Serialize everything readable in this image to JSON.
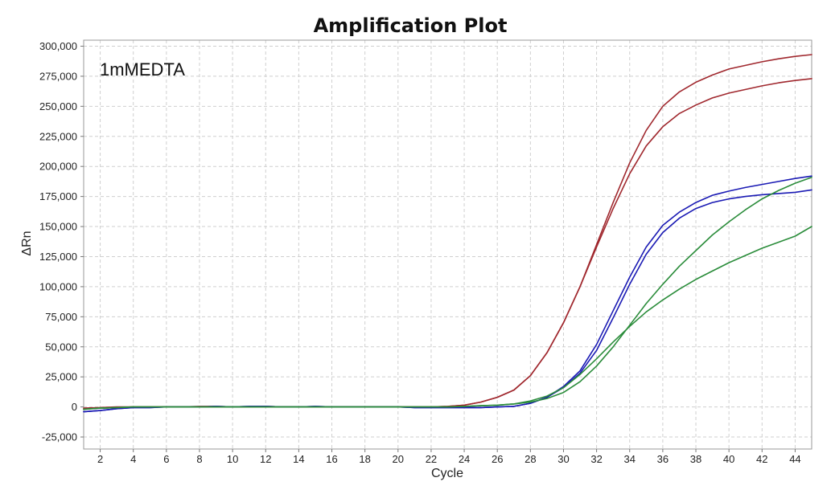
{
  "chart_data": {
    "type": "line",
    "title": "Amplification Plot",
    "xlabel": "Cycle",
    "ylabel": "ΔRn",
    "annotation": "1mMEDTA",
    "xlim": [
      1,
      45
    ],
    "ylim": [
      -35000,
      305000
    ],
    "x_ticks": [
      2,
      4,
      6,
      8,
      10,
      12,
      14,
      16,
      18,
      20,
      22,
      24,
      26,
      28,
      30,
      32,
      34,
      36,
      38,
      40,
      42,
      44
    ],
    "y_ticks": [
      -25000,
      0,
      25000,
      50000,
      75000,
      100000,
      125000,
      150000,
      175000,
      200000,
      225000,
      250000,
      275000,
      300000
    ],
    "y_tick_labels": [
      "-25,000",
      "0",
      "25,000",
      "50,000",
      "75,000",
      "100,000",
      "125,000",
      "150,000",
      "175,000",
      "200,000",
      "225,000",
      "250,000",
      "275,000",
      "300,000"
    ],
    "grid": true,
    "x": [
      1,
      2,
      3,
      4,
      5,
      6,
      7,
      8,
      9,
      10,
      11,
      12,
      13,
      14,
      15,
      16,
      17,
      18,
      19,
      20,
      21,
      22,
      23,
      24,
      25,
      26,
      27,
      28,
      29,
      30,
      31,
      32,
      33,
      34,
      35,
      36,
      37,
      38,
      39,
      40,
      41,
      42,
      43,
      44,
      45
    ],
    "series": [
      {
        "color": "#a0282e",
        "values": [
          -1000,
          -500,
          0,
          0,
          0,
          0,
          0,
          500,
          500,
          0,
          0,
          500,
          0,
          0,
          0,
          0,
          0,
          0,
          0,
          0,
          0,
          0,
          500,
          1500,
          4000,
          8000,
          14000,
          26000,
          45000,
          70000,
          100000,
          135000,
          170000,
          203000,
          230000,
          250000,
          262000,
          270000,
          276000,
          281000,
          284000,
          287000,
          289500,
          291500,
          293000
        ]
      },
      {
        "color": "#a0282e",
        "values": [
          -1500,
          -1000,
          -500,
          0,
          0,
          0,
          0,
          0,
          0,
          0,
          0,
          0,
          0,
          0,
          0,
          0,
          0,
          0,
          0,
          0,
          0,
          0,
          500,
          1500,
          4000,
          8000,
          14000,
          26000,
          45000,
          70000,
          100000,
          133000,
          165000,
          194000,
          217000,
          233000,
          244000,
          251000,
          257000,
          261000,
          264000,
          267000,
          269500,
          271500,
          273000
        ]
      },
      {
        "color": "#1a1ab4",
        "values": [
          -4000,
          -3000,
          -1500,
          -500,
          -500,
          0,
          0,
          0,
          500,
          0,
          500,
          500,
          0,
          0,
          500,
          0,
          0,
          0,
          0,
          0,
          -500,
          -500,
          -500,
          -500,
          -500,
          0,
          500,
          3000,
          8000,
          17000,
          30000,
          52000,
          80000,
          108000,
          133000,
          151000,
          162000,
          170000,
          176000,
          179500,
          182500,
          185000,
          187500,
          190000,
          192000
        ]
      },
      {
        "color": "#1a1ab4",
        "values": [
          -4000,
          -3000,
          -1500,
          -500,
          -500,
          0,
          0,
          0,
          500,
          0,
          500,
          500,
          0,
          0,
          500,
          0,
          0,
          0,
          0,
          0,
          -500,
          -500,
          -500,
          -500,
          -500,
          0,
          500,
          3000,
          8000,
          16000,
          28000,
          47000,
          74000,
          102000,
          127000,
          145000,
          157000,
          165000,
          170000,
          173000,
          175000,
          176500,
          177500,
          178500,
          180500
        ]
      },
      {
        "color": "#2a8c3a",
        "values": [
          -2000,
          -1000,
          -500,
          0,
          0,
          0,
          0,
          0,
          0,
          0,
          0,
          0,
          0,
          0,
          0,
          0,
          0,
          0,
          0,
          0,
          0,
          0,
          0,
          500,
          1000,
          1500,
          2500,
          4000,
          7000,
          12000,
          21000,
          34000,
          50000,
          68000,
          86000,
          102000,
          117000,
          130000,
          143000,
          154000,
          164000,
          173000,
          180000,
          186000,
          191000
        ]
      },
      {
        "color": "#2a8c3a",
        "values": [
          -2000,
          -1000,
          -500,
          0,
          0,
          0,
          0,
          0,
          0,
          0,
          0,
          0,
          0,
          0,
          0,
          0,
          0,
          0,
          0,
          0,
          0,
          0,
          0,
          500,
          1000,
          1500,
          2500,
          5000,
          9000,
          16000,
          27000,
          40000,
          54000,
          67000,
          79000,
          89000,
          98000,
          106000,
          113000,
          120000,
          126000,
          132000,
          137000,
          142000,
          150000
        ]
      }
    ]
  }
}
